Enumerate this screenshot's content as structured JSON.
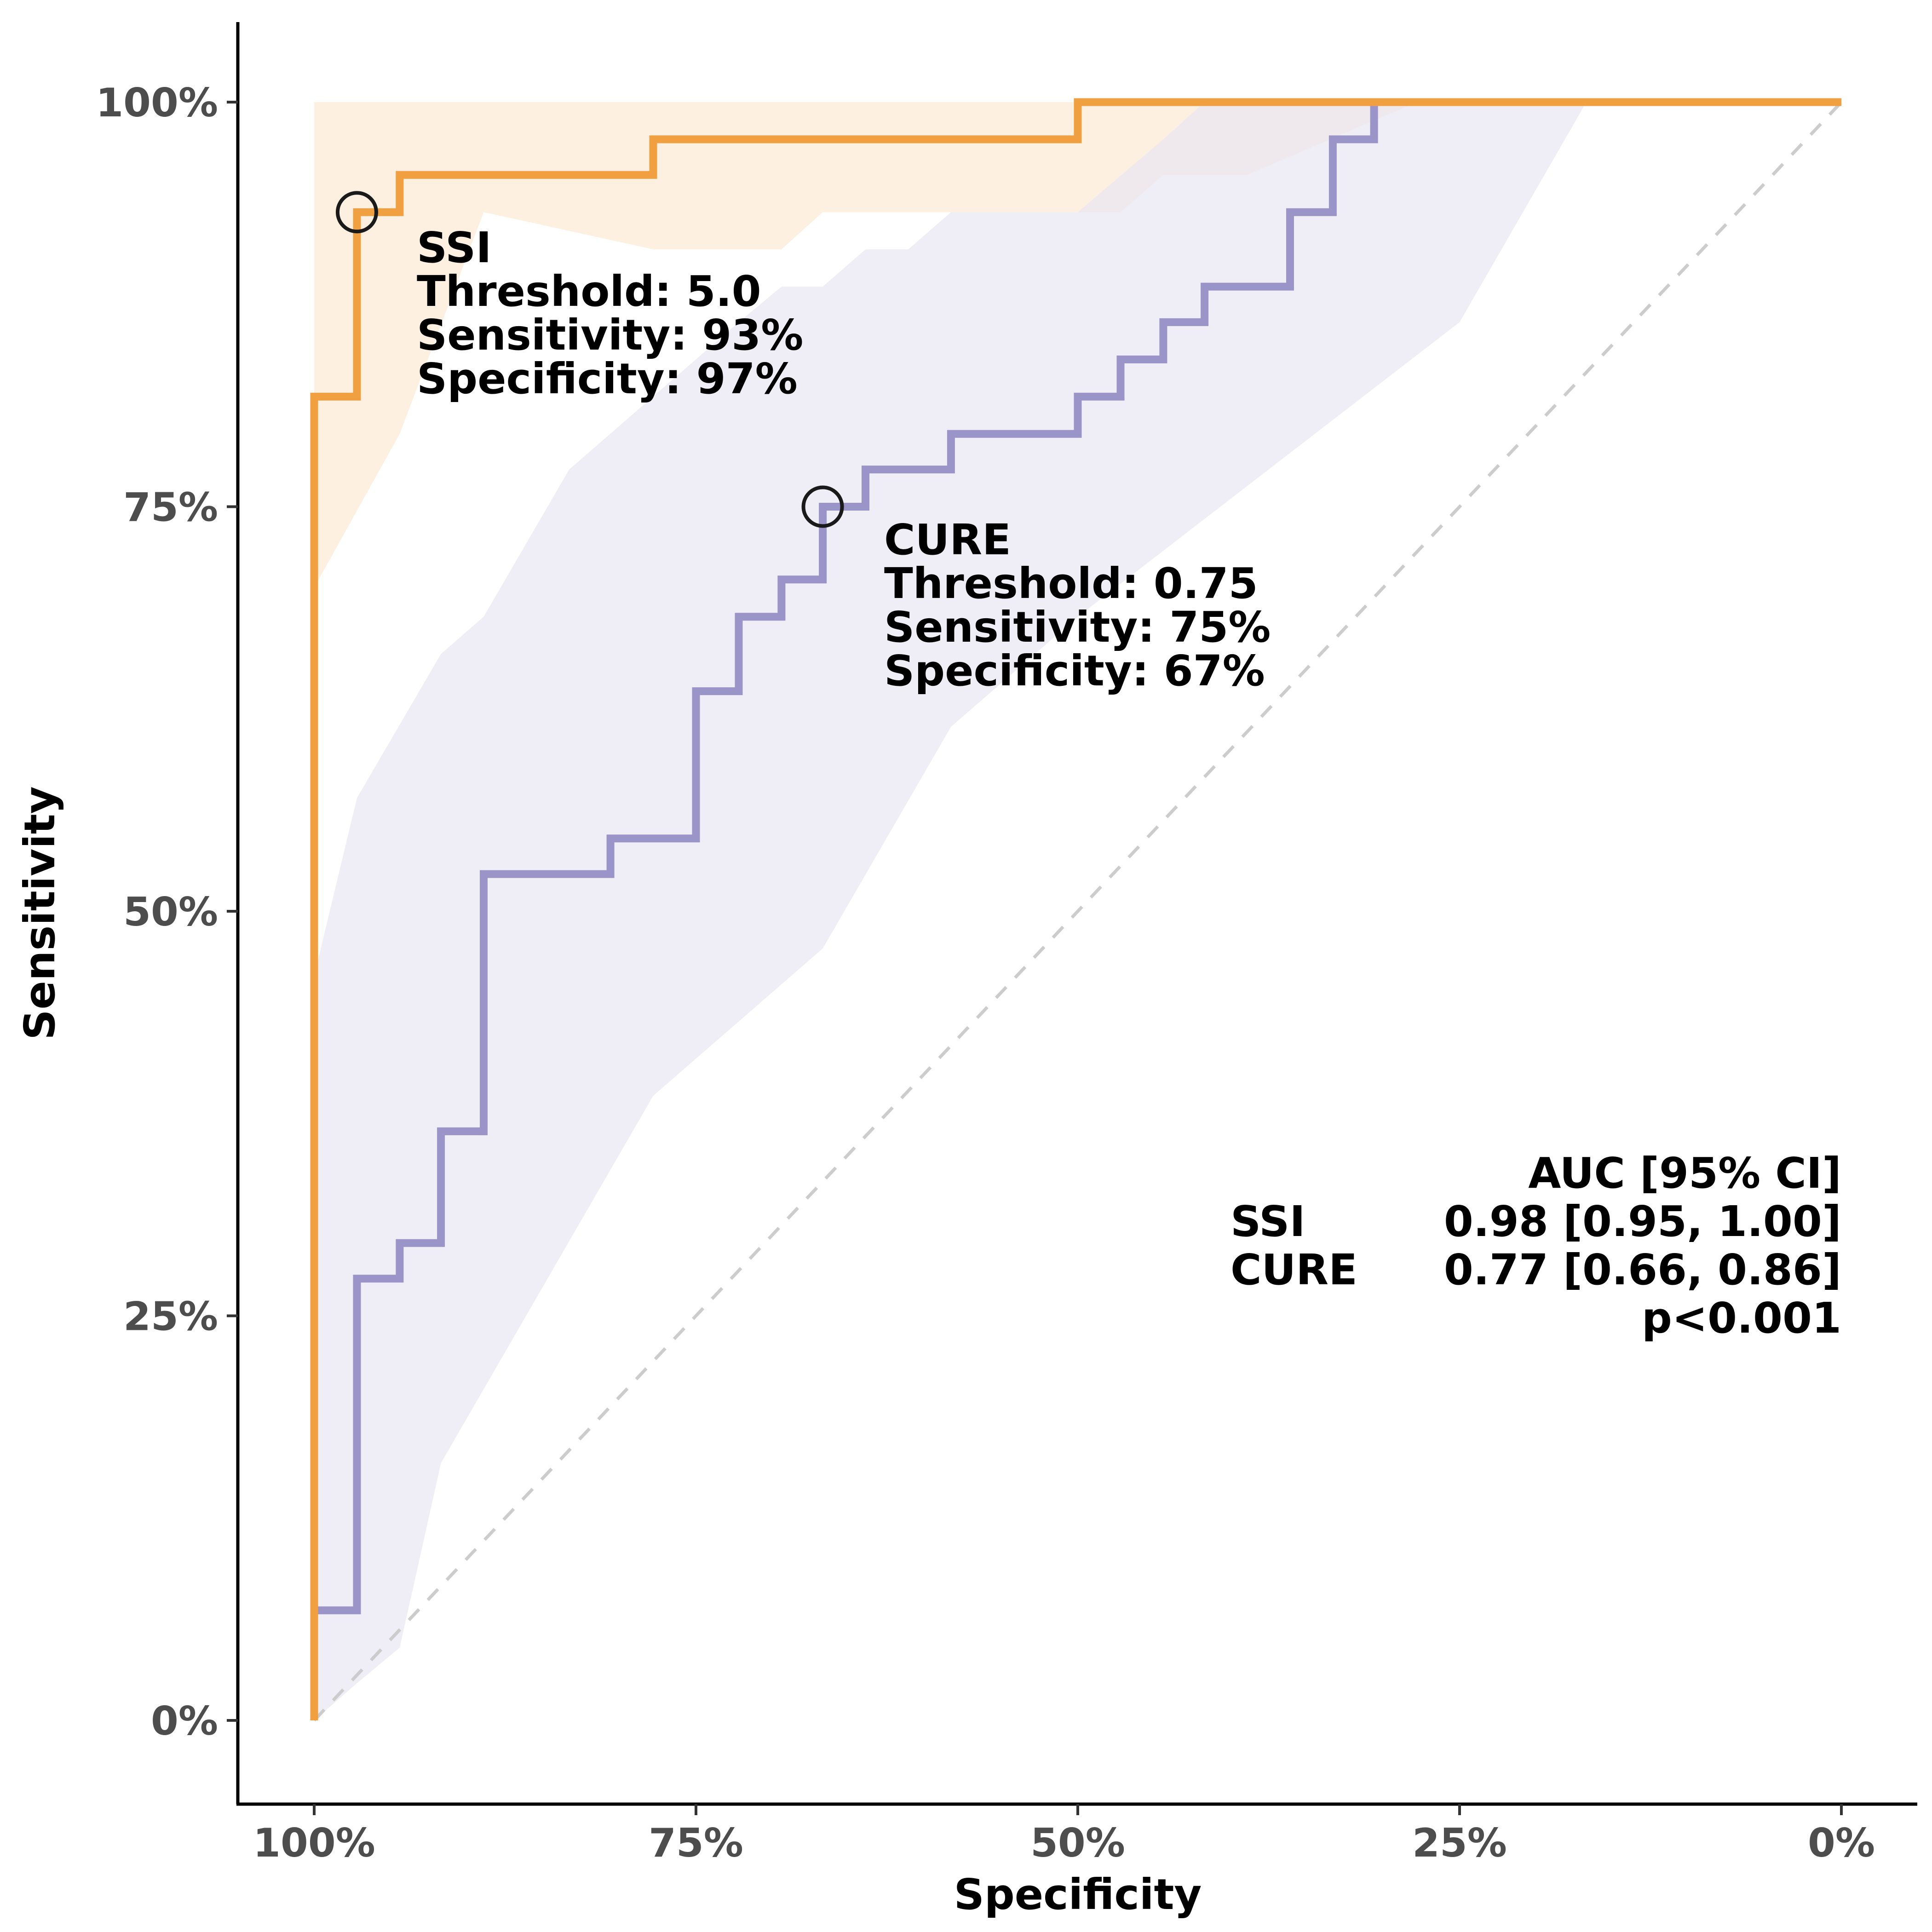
{
  "chart_data": {
    "type": "line",
    "subtype": "roc",
    "xlabel": "Specificity",
    "ylabel": "Sensitivity",
    "x_reversed": true,
    "xlim": [
      1.05,
      -0.05
    ],
    "ylim": [
      -0.05,
      1.05
    ],
    "x_ticks": [
      {
        "value": 1.0,
        "label": "100%"
      },
      {
        "value": 0.75,
        "label": "75%"
      },
      {
        "value": 0.5,
        "label": "50%"
      },
      {
        "value": 0.25,
        "label": "25%"
      },
      {
        "value": 0.0,
        "label": "0%"
      }
    ],
    "y_ticks": [
      {
        "value": 0.0,
        "label": "0%"
      },
      {
        "value": 0.25,
        "label": "25%"
      },
      {
        "value": 0.5,
        "label": "50%"
      },
      {
        "value": 0.75,
        "label": "75%"
      },
      {
        "value": 1.0,
        "label": "100%"
      }
    ],
    "grid": false,
    "reference_line": {
      "from": [
        1,
        0
      ],
      "to": [
        0,
        1
      ],
      "style": "dashed",
      "color": "#cccccc"
    },
    "series": [
      {
        "name": "SSI",
        "color": "#f0a040",
        "band_color": "#fdebd6",
        "points": [
          [
            1.0,
            0.0
          ],
          [
            1.0,
            0.818
          ],
          [
            0.972,
            0.818
          ],
          [
            0.972,
            0.932
          ],
          [
            0.944,
            0.932
          ],
          [
            0.944,
            0.955
          ],
          [
            0.778,
            0.955
          ],
          [
            0.778,
            0.977
          ],
          [
            0.5,
            0.977
          ],
          [
            0.5,
            1.0
          ],
          [
            0.0,
            1.0
          ]
        ],
        "ci_band": {
          "upper": [
            [
              1.0,
              0.44
            ],
            [
              1.0,
              1.0
            ],
            [
              0.0,
              1.0
            ]
          ],
          "lower": [
            [
              1.0,
              0.7
            ],
            [
              0.944,
              0.795
            ],
            [
              0.889,
              0.932
            ],
            [
              0.778,
              0.909
            ],
            [
              0.694,
              0.909
            ],
            [
              0.667,
              0.932
            ],
            [
              0.472,
              0.932
            ],
            [
              0.444,
              0.955
            ],
            [
              0.389,
              0.955
            ],
            [
              0.278,
              1.0
            ],
            [
              0.0,
              1.0
            ]
          ]
        },
        "optimal_point": {
          "specificity": 0.972,
          "sensitivity": 0.932
        },
        "annotation": {
          "title": "SSI",
          "lines": [
            "Threshold: 5.0",
            "Sensitivity: 93%",
            "Specificity: 97%"
          ]
        }
      },
      {
        "name": "CURE",
        "color": "#9b94c8",
        "band_color": "#e9e7f2",
        "points": [
          [
            1.0,
            0.0
          ],
          [
            1.0,
            0.068
          ],
          [
            0.972,
            0.068
          ],
          [
            0.972,
            0.273
          ],
          [
            0.944,
            0.273
          ],
          [
            0.944,
            0.295
          ],
          [
            0.917,
            0.295
          ],
          [
            0.917,
            0.364
          ],
          [
            0.889,
            0.364
          ],
          [
            0.889,
            0.523
          ],
          [
            0.806,
            0.523
          ],
          [
            0.806,
            0.545
          ],
          [
            0.75,
            0.545
          ],
          [
            0.75,
            0.636
          ],
          [
            0.722,
            0.636
          ],
          [
            0.722,
            0.682
          ],
          [
            0.694,
            0.682
          ],
          [
            0.694,
            0.705
          ],
          [
            0.667,
            0.705
          ],
          [
            0.667,
            0.75
          ],
          [
            0.639,
            0.75
          ],
          [
            0.639,
            0.773
          ],
          [
            0.583,
            0.773
          ],
          [
            0.583,
            0.795
          ],
          [
            0.5,
            0.795
          ],
          [
            0.5,
            0.818
          ],
          [
            0.472,
            0.818
          ],
          [
            0.472,
            0.841
          ],
          [
            0.444,
            0.841
          ],
          [
            0.444,
            0.864
          ],
          [
            0.417,
            0.864
          ],
          [
            0.417,
            0.886
          ],
          [
            0.361,
            0.886
          ],
          [
            0.361,
            0.932
          ],
          [
            0.333,
            0.932
          ],
          [
            0.333,
            0.977
          ],
          [
            0.306,
            0.977
          ],
          [
            0.306,
            1.0
          ],
          [
            0.0,
            1.0
          ]
        ],
        "ci_band": {
          "upper": [
            [
              1.0,
              0.0
            ],
            [
              1.0,
              0.46
            ],
            [
              0.972,
              0.57
            ],
            [
              0.917,
              0.659
            ],
            [
              0.889,
              0.682
            ],
            [
              0.833,
              0.773
            ],
            [
              0.722,
              0.864
            ],
            [
              0.694,
              0.886
            ],
            [
              0.667,
              0.886
            ],
            [
              0.639,
              0.909
            ],
            [
              0.611,
              0.909
            ],
            [
              0.583,
              0.932
            ],
            [
              0.5,
              0.932
            ],
            [
              0.444,
              0.977
            ],
            [
              0.417,
              1.0
            ],
            [
              0.0,
              1.0
            ]
          ],
          "lower": [
            [
              1.0,
              0.0
            ],
            [
              0.972,
              0.023
            ],
            [
              0.944,
              0.045
            ],
            [
              0.917,
              0.159
            ],
            [
              0.778,
              0.386
            ],
            [
              0.667,
              0.477
            ],
            [
              0.583,
              0.614
            ],
            [
              0.5,
              0.682
            ],
            [
              0.25,
              0.864
            ],
            [
              0.167,
              1.0
            ],
            [
              0.0,
              1.0
            ]
          ]
        },
        "optimal_point": {
          "specificity": 0.667,
          "sensitivity": 0.75
        },
        "annotation": {
          "title": "CURE",
          "lines": [
            "Threshold: 0.75",
            "Sensitivity: 75%",
            "Specificity: 67%"
          ]
        }
      }
    ],
    "auc_table": {
      "header": "AUC [95% CI]",
      "rows": [
        {
          "name": "SSI",
          "value": "0.98 [0.95, 1.00]"
        },
        {
          "name": "CURE",
          "value": "0.77 [0.66, 0.86]"
        }
      ],
      "p_value": "p<0.001"
    }
  }
}
